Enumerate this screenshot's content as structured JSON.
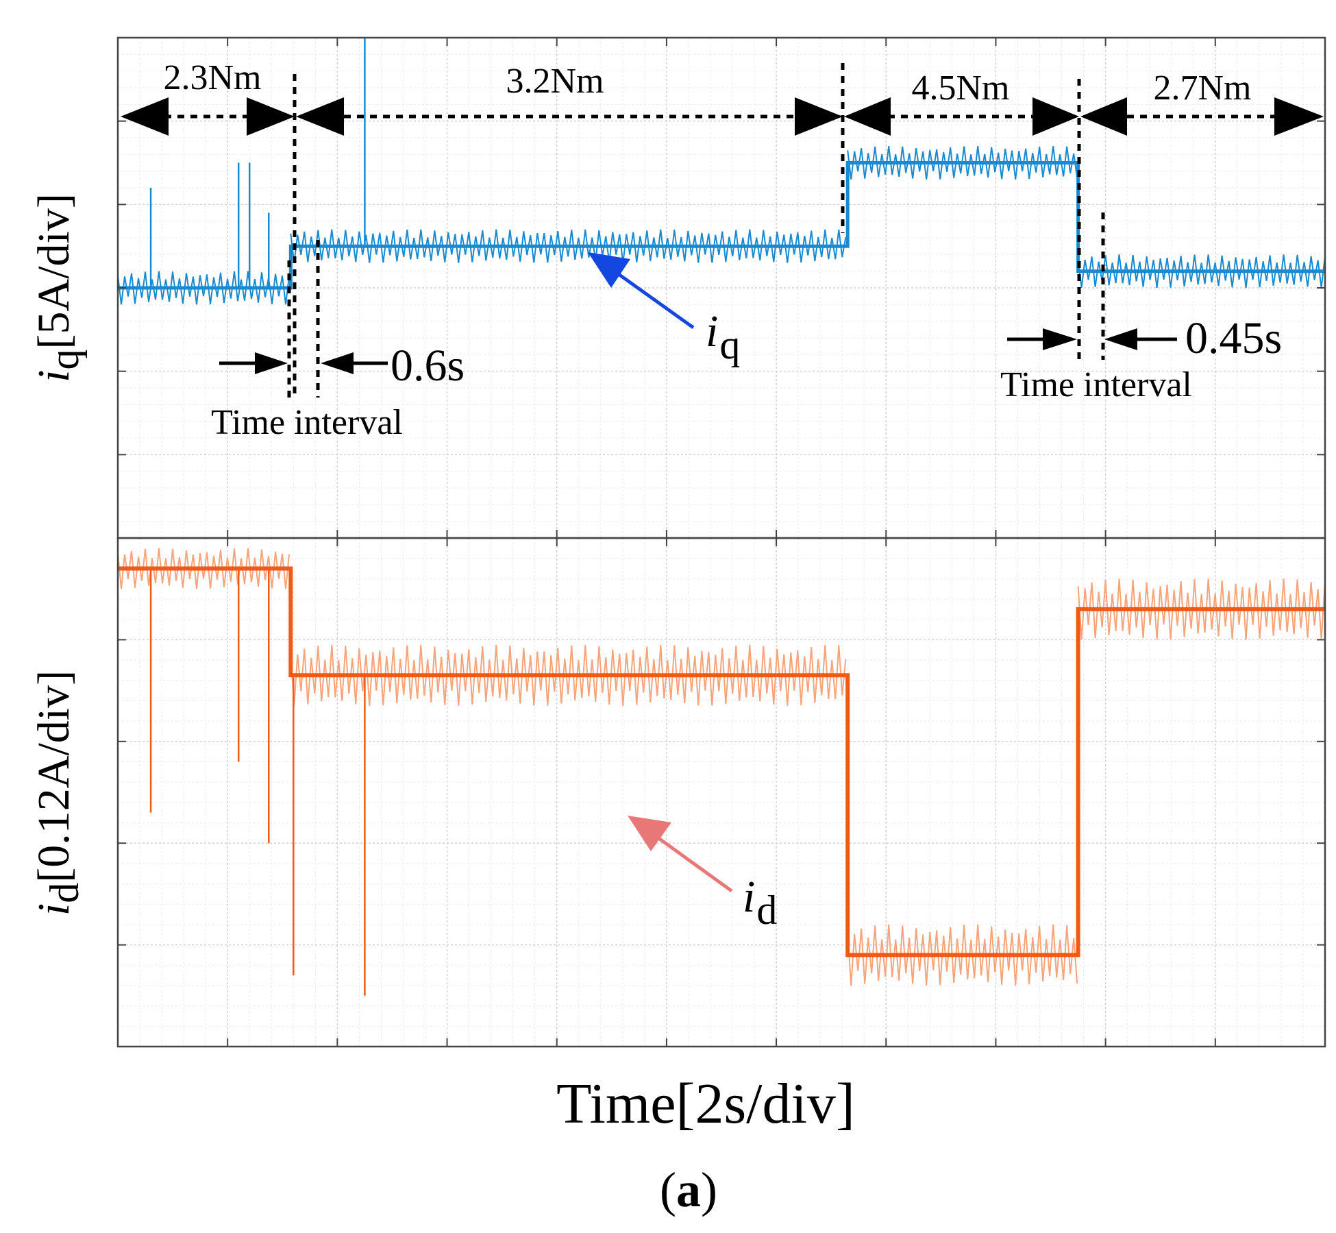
{
  "caption": {
    "open": "(",
    "letter": "a",
    "close": ")"
  },
  "chart_data": {
    "type": "line",
    "x_label": "Time[2s/div]",
    "x_range": [
      0,
      22
    ],
    "x_divisions": 11,
    "grid": true,
    "panels": [
      {
        "name": "iq",
        "y_label": {
          "main": "i",
          "sub": "q",
          "unit": "[5A/div]"
        },
        "color": "#1a8ad0",
        "y_range_div": [
          -2,
          4
        ],
        "segments": [
          {
            "t_start": 0,
            "t_end": 3.15,
            "value_div": 1.0,
            "ripple_div": 0.2
          },
          {
            "t_start": 3.15,
            "t_end": 13.3,
            "value_div": 1.5,
            "ripple_div": 0.2
          },
          {
            "t_start": 13.3,
            "t_end": 17.5,
            "value_div": 2.5,
            "ripple_div": 0.2
          },
          {
            "t_start": 17.5,
            "t_end": 22,
            "value_div": 1.2,
            "ripple_div": 0.2
          }
        ],
        "spikes": [
          {
            "t": 0.6,
            "value_div": 2.2
          },
          {
            "t": 2.2,
            "value_div": 2.5
          },
          {
            "t": 2.4,
            "value_div": 2.5
          },
          {
            "t": 2.75,
            "value_div": 1.9
          },
          {
            "t": 4.5,
            "value_div": 4.2
          }
        ],
        "series_label": {
          "main": "i",
          "sub": "q"
        },
        "load_segments": [
          "2.3Nm",
          "3.2Nm",
          "4.5Nm",
          "2.7Nm"
        ],
        "intervals": [
          {
            "value": "0.6s",
            "label": "Time interval"
          },
          {
            "value": "0.45s",
            "label": "Time interval"
          }
        ]
      },
      {
        "name": "id",
        "y_label": {
          "main": "i",
          "sub": "d",
          "unit": "[0.12A/div]"
        },
        "color": "#f05a14",
        "color_light": "#f7a47a",
        "y_range_div": [
          -2,
          3
        ],
        "segments": [
          {
            "t_start": 0,
            "t_end": 3.15,
            "value_div": 2.7,
            "ripple_div": 0.2
          },
          {
            "t_start": 3.15,
            "t_end": 13.3,
            "value_div": 1.65,
            "ripple_div": 0.3
          },
          {
            "t_start": 13.3,
            "t_end": 17.5,
            "value_div": -1.1,
            "ripple_div": 0.3
          },
          {
            "t_start": 17.5,
            "t_end": 22,
            "value_div": 2.3,
            "ripple_div": 0.3
          }
        ],
        "spikes": [
          {
            "t": 0.6,
            "value_div": 0.3
          },
          {
            "t": 2.2,
            "value_div": 0.8
          },
          {
            "t": 2.75,
            "value_div": 0.0
          },
          {
            "t": 3.2,
            "value_div": -1.3
          },
          {
            "t": 4.5,
            "value_div": -1.5
          }
        ],
        "series_label": {
          "main": "i",
          "sub": "d"
        }
      }
    ]
  }
}
